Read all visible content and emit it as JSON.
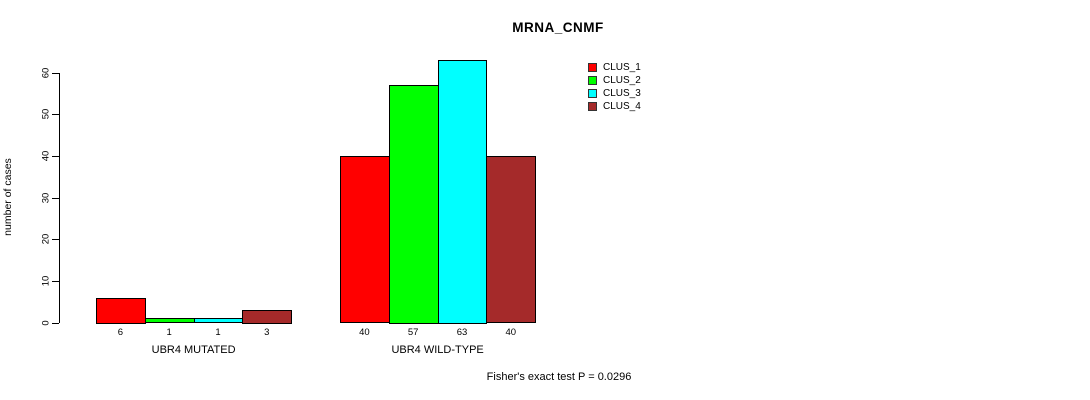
{
  "title": "MRNA_CNMF",
  "footer": "Fisher's exact test P = 0.0296",
  "chart_data": {
    "type": "bar",
    "title": "MRNA_CNMF",
    "xlabel": "",
    "ylabel": "number of cases",
    "ylim": [
      0,
      60
    ],
    "yticks": [
      0,
      10,
      20,
      30,
      40,
      50,
      60
    ],
    "grid": false,
    "legend_position": "top-right",
    "categories": [
      "UBR4 MUTATED",
      "UBR4 WILD-TYPE"
    ],
    "series": [
      {
        "name": "CLUS_1",
        "color": "#ff0000",
        "values": [
          6,
          40
        ]
      },
      {
        "name": "CLUS_2",
        "color": "#00ff00",
        "values": [
          1,
          57
        ]
      },
      {
        "name": "CLUS_3",
        "color": "#00ffff",
        "values": [
          1,
          63
        ]
      },
      {
        "name": "CLUS_4",
        "color": "#a52a2a",
        "values": [
          3,
          40
        ]
      }
    ],
    "bar_value_labels": [
      [
        "6",
        "1",
        "1",
        "3"
      ],
      [
        "40",
        "57",
        "63",
        "40"
      ]
    ],
    "annotation": "Fisher's exact test P = 0.0296"
  }
}
